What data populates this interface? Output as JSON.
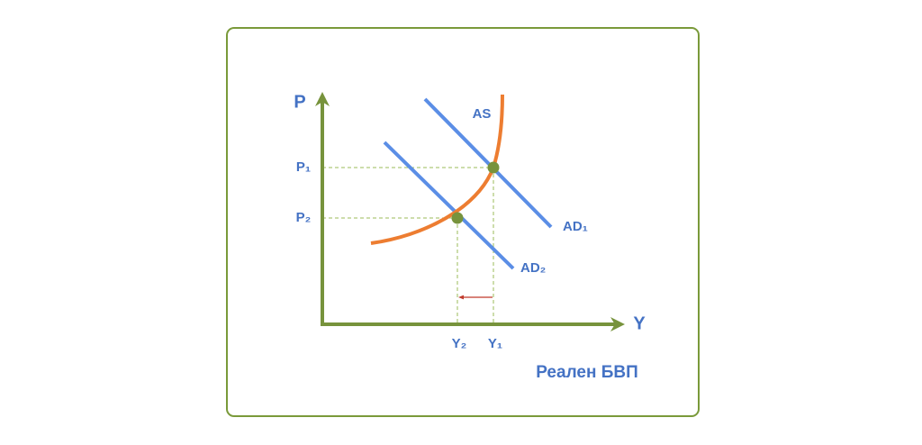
{
  "axes": {
    "y_label": "P",
    "x_label": "Y"
  },
  "curves": {
    "as": "AS",
    "ad1": "AD₁",
    "ad2": "AD₂"
  },
  "levels": {
    "p1": "P₁",
    "p2": "P₂",
    "y1": "Y₁",
    "y2": "Y₂"
  },
  "caption": "Реален БВП"
}
